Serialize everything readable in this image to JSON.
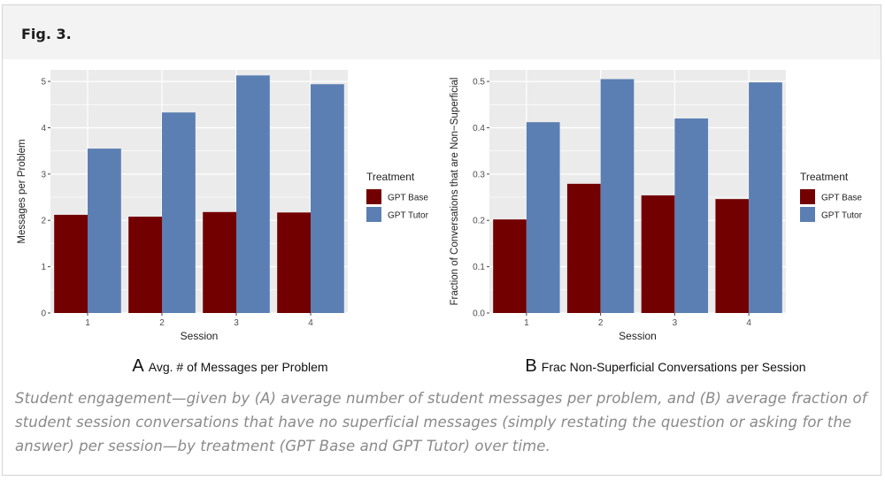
{
  "figure": {
    "label": "Fig. 3.",
    "caption": "Student engagement—given by (A) average number of student messages per problem, and (B) average fraction of student session conversations that have no superficial messages (simply restating the question or asking for the answer) per session—by treatment (GPT Base and GPT Tutor) over time."
  },
  "colors": {
    "gpt_base": "#730000",
    "gpt_tutor": "#5b7fb3",
    "panel_bg": "#ebebeb",
    "grid": "#ffffff"
  },
  "chart_data": [
    {
      "type": "bar",
      "panel_letter": "A",
      "subtitle": "Avg. # of Messages per Problem",
      "categories": [
        "1",
        "2",
        "3",
        "4"
      ],
      "series": [
        {
          "name": "GPT Base",
          "values": [
            2.12,
            2.08,
            2.18,
            2.17
          ]
        },
        {
          "name": "GPT Tutor",
          "values": [
            3.55,
            4.33,
            5.13,
            4.94
          ]
        }
      ],
      "xlabel": "Session",
      "ylabel": "Messages per Problem",
      "ylim": [
        0,
        5.25
      ],
      "yticks": [
        0,
        1,
        2,
        3,
        4,
        5
      ],
      "ytick_labels": [
        "0",
        "1",
        "2",
        "3",
        "4",
        "5"
      ],
      "legend_title": "Treatment",
      "legend_position": "right",
      "grid": true
    },
    {
      "type": "bar",
      "panel_letter": "B",
      "subtitle": "Frac Non-Superficial Conversations per Session",
      "categories": [
        "1",
        "2",
        "3",
        "4"
      ],
      "series": [
        {
          "name": "GPT Base",
          "values": [
            0.202,
            0.279,
            0.254,
            0.246
          ]
        },
        {
          "name": "GPT Tutor",
          "values": [
            0.412,
            0.505,
            0.42,
            0.498
          ]
        }
      ],
      "xlabel": "Session",
      "ylabel": "Fraction of Conversations that are Non−Superficial",
      "ylim": [
        0,
        0.525
      ],
      "yticks": [
        0,
        0.1,
        0.2,
        0.3,
        0.4,
        0.5
      ],
      "ytick_labels": [
        "0.0",
        "0.1",
        "0.2",
        "0.3",
        "0.4",
        "0.5"
      ],
      "legend_title": "Treatment",
      "legend_position": "right",
      "grid": true
    }
  ]
}
